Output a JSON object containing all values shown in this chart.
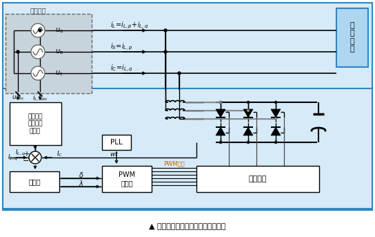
{
  "title": "▲ 加强型静止无功发生器工作原理图",
  "bg_outer": "#ffffff",
  "bg_main": "#d6eaf8",
  "bg_source": "#d0d8e0",
  "source_dashed_ec": "#888888",
  "user_box_fc": "#aed6f1",
  "user_box_ec": "#2e86c1",
  "main_box_ec": "#2e86c1",
  "white_box_fc": "#ffffff",
  "system_label": "系统进线",
  "ua": "u_a",
  "ub": "u_b",
  "uc": "u_c",
  "user_label": "用\n户\n负\n载",
  "calc_label": "负荷无功\n及谐波电\n流计算",
  "reg_label": "调节器",
  "pwm_gen_label": "PWM\n发生器",
  "pll_label": "PLL",
  "drive_label": "驱动电路",
  "pwm_signal_label": "PWM信号",
  "wt_label": "wt"
}
